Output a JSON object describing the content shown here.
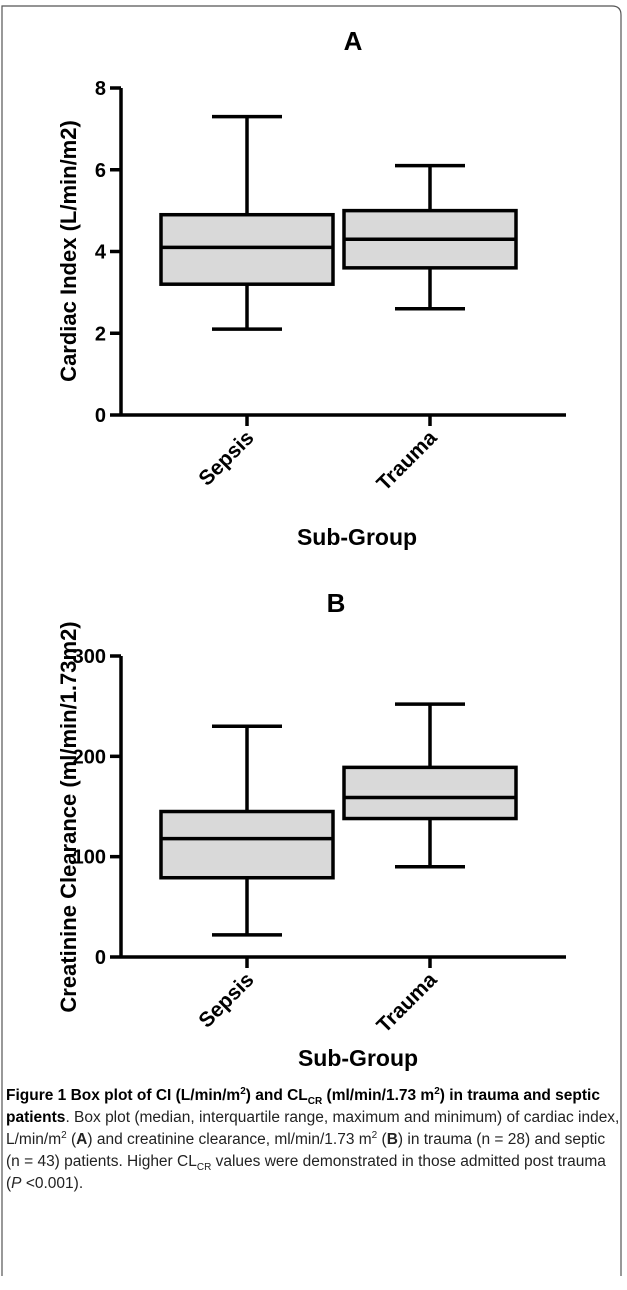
{
  "chart_data": [
    {
      "type": "box",
      "panel_label": "A",
      "xlabel": "Sub-Group",
      "ylabel": "Cardiac Index (L/min/m2)",
      "ylim": [
        0,
        8
      ],
      "yticks": [
        0,
        2,
        4,
        6,
        8
      ],
      "categories": [
        "Sepsis",
        "Trauma"
      ],
      "boxes": [
        {
          "category": "Sepsis",
          "min": 2.1,
          "q1": 3.2,
          "median": 4.1,
          "q3": 4.9,
          "max": 7.3
        },
        {
          "category": "Trauma",
          "min": 2.6,
          "q1": 3.6,
          "median": 4.3,
          "q3": 5.0,
          "max": 6.1
        }
      ],
      "box_fill": "#d9d9d9"
    },
    {
      "type": "box",
      "panel_label": "B",
      "xlabel": "Sub-Group",
      "ylabel": "Creatinine Clearance (ml/min/1.73m2)",
      "ylim": [
        0,
        300
      ],
      "yticks": [
        0,
        100,
        200,
        300
      ],
      "categories": [
        "Sepsis",
        "Trauma"
      ],
      "boxes": [
        {
          "category": "Sepsis",
          "min": 22,
          "q1": 79,
          "median": 118,
          "q3": 145,
          "max": 230
        },
        {
          "category": "Trauma",
          "min": 90,
          "q1": 138,
          "median": 159,
          "q3": 189,
          "max": 252
        }
      ],
      "box_fill": "#d9d9d9"
    }
  ],
  "caption": {
    "lead_1": "Figure 1 Box plot of CI (L/min/m",
    "lead_sup_1": "2",
    "lead_2": ") and CL",
    "lead_sub": "CR",
    "lead_3": " (ml/min/1.73 m",
    "lead_sup_2": "2",
    "lead_4": ") in trauma and septic patients",
    "body_1": ". Box plot (median, interquartile range, maximum and minimum) of cardiac index, L/min/m",
    "body_sup_1": "2",
    "body_2": " (",
    "body_bold_a": "A",
    "body_3": ") and creatinine clearance, ml/min/1.73 m",
    "body_sup_2": "2",
    "body_4": " (",
    "body_bold_b": "B",
    "body_5": ") in trauma (n = 28) and septic (n = 43) patients. Higher CL",
    "body_sub": "CR",
    "body_6": " values were demonstrated in those admitted post trauma (",
    "body_italic_p": "P",
    "body_7": " <0.001)."
  }
}
